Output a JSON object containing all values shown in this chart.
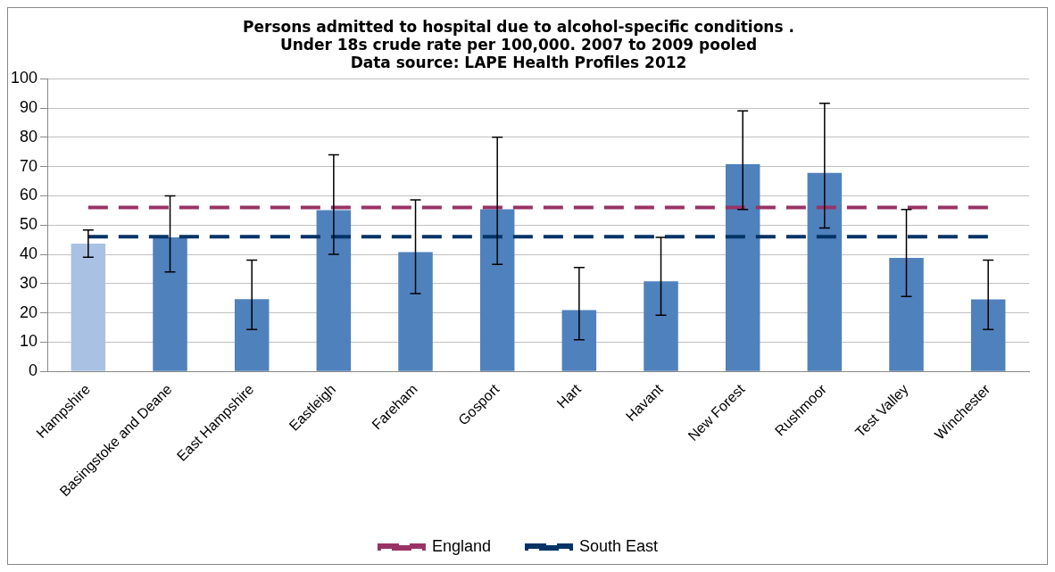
{
  "chart_data": {
    "type": "bar",
    "title": [
      "Persons admitted to hospital due to alcohol-specific conditions .",
      "Under 18s crude rate per 100,000. 2007 to 2009 pooled",
      "Data source: LAPE Health Profiles 2012"
    ],
    "categories": [
      "Hampshire",
      "Basingstoke and Deane",
      "East Hampshire",
      "Eastleigh",
      "Fareham",
      "Gosport",
      "Hart",
      "Havant",
      "New Forest",
      "Rushmoor",
      "Test Valley",
      "Winchester"
    ],
    "values": [
      43.7,
      45.8,
      24.7,
      55.1,
      40.8,
      55.4,
      21,
      30.8,
      70.8,
      67.8,
      38.8,
      24.6
    ],
    "colors": [
      "#a9c2e3",
      "#4f81bd",
      "#4f81bd",
      "#4f81bd",
      "#4f81bd",
      "#4f81bd",
      "#4f81bd",
      "#4f81bd",
      "#4f81bd",
      "#4f81bd",
      "#4f81bd",
      "#4f81bd"
    ],
    "errors": [
      [
        39,
        48.3
      ],
      [
        34,
        60
      ],
      [
        14.3,
        38
      ],
      [
        40,
        74
      ],
      [
        26.6,
        58.6
      ],
      [
        36.6,
        80
      ],
      [
        10.8,
        35.5
      ],
      [
        19.2,
        45.8
      ],
      [
        55.3,
        89
      ],
      [
        49,
        91.6
      ],
      [
        25.6,
        55.3
      ],
      [
        14.3,
        38
      ]
    ],
    "ref_lines": [
      {
        "axis": "y",
        "value": 56,
        "label": "England",
        "color": "#993366",
        "line_style": "dashed"
      },
      {
        "axis": "y",
        "value": 46,
        "label": "South East",
        "color": "#003366",
        "line_style": "dashed"
      }
    ],
    "ylim": [
      0,
      100
    ],
    "yticks": [
      0,
      10,
      20,
      30,
      40,
      50,
      60,
      70,
      80,
      90,
      100
    ],
    "grid": "y",
    "legend": "bottom"
  }
}
